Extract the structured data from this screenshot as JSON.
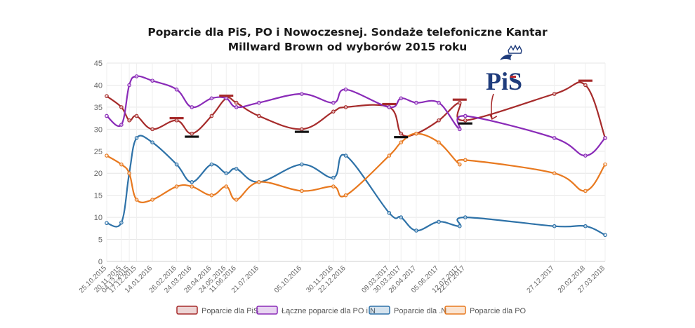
{
  "chart_data": {
    "type": "line",
    "title_lines": [
      "Poparcie dla PiS, PO i Nowoczesnej. Sondaże telefoniczne Kantar",
      "Millward Brown od wyborów 2015 roku"
    ],
    "ylim": [
      0,
      45
    ],
    "yticks": [
      "0",
      "5",
      "10",
      "15",
      "20",
      "25",
      "30",
      "35",
      "40",
      "45"
    ],
    "grid": true,
    "legend_position": "bottom",
    "x": [
      "25.10.2015",
      "20.11.2015",
      "04.12.2015",
      "17.12.2015",
      "14.01.2016",
      "26.02.2016",
      "24.03.2016",
      "28.04.2016",
      "24.05.2016",
      "11.06.2016",
      "21.07.2016",
      "05.10.2016",
      "30.11.2016",
      "22.12.2016",
      "09.03.2017",
      "30.03.2017",
      "26.04.2017",
      "05.06.2017",
      "12.07.2017",
      "22.07.2017",
      "27.12.2017",
      "20.02.2018",
      "27.03.2018"
    ],
    "series": [
      {
        "name": "Poparcie dla PiS",
        "color": "#a62b2b",
        "values": [
          37.5,
          35,
          32,
          33,
          30,
          32,
          29,
          33,
          37,
          36,
          33,
          30,
          34,
          35,
          35,
          29,
          29,
          32,
          36,
          32,
          38,
          40,
          28
        ]
      },
      {
        "name": "Łączne poparcie dla PO i N",
        "color": "#8a2bb8",
        "values": [
          33,
          31,
          40,
          42,
          41,
          39,
          35,
          37,
          37,
          35,
          36,
          38,
          36,
          39,
          35,
          37,
          36,
          36,
          30,
          33,
          28,
          24,
          28
        ]
      },
      {
        "name": "Poparcie dla .N",
        "color": "#2e72a8",
        "values": [
          8.7,
          8.8,
          20,
          28,
          27,
          22,
          18,
          22,
          20,
          21,
          18,
          22,
          19,
          24,
          11,
          10,
          7,
          9,
          8,
          10,
          8,
          8,
          6
        ]
      },
      {
        "name": "Poparcie dla PO",
        "color": "#e8791f",
        "values": [
          24,
          22,
          20,
          14,
          14,
          17,
          17,
          15,
          17,
          14,
          18,
          16,
          17,
          15,
          24,
          27,
          29,
          27,
          22,
          23,
          20,
          16,
          22
        ]
      }
    ],
    "annotations": {
      "high_marker_color": "#a62b2b",
      "low_marker_color": "#111111",
      "pis_highs": [
        {
          "x": "26.02.2016",
          "y": 32.5
        },
        {
          "x": "24.05.2016",
          "y": 37.6
        },
        {
          "x": "09.03.2017",
          "y": 35.7
        },
        {
          "x": "12.07.2017",
          "y": 36.7
        },
        {
          "x": "20.02.2018",
          "y": 41
        }
      ],
      "pis_lows": [
        {
          "x": "24.03.2016",
          "y": 28.3
        },
        {
          "x": "05.10.2016",
          "y": 29.4
        },
        {
          "x": "30.03.2017",
          "y": 28.2
        },
        {
          "x": "22.07.2017",
          "y": 31.3
        }
      ]
    },
    "logo": {
      "text": "PiS",
      "color": "#1f3c7c",
      "arrow_color": "#a62b2b",
      "arrow_to": {
        "x": "22.07.2017",
        "y": 32
      }
    }
  }
}
